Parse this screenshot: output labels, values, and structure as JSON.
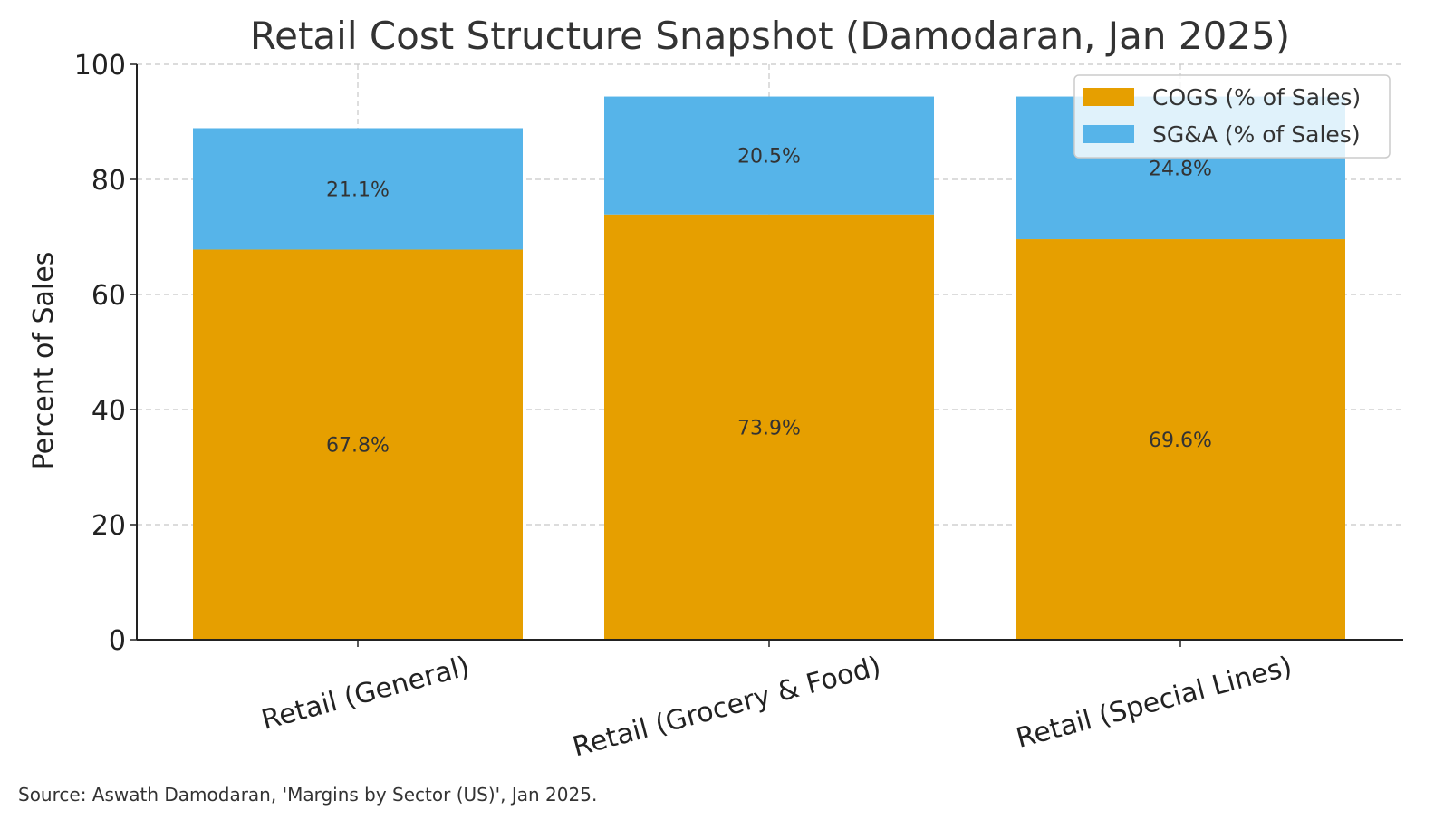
{
  "chart_data": {
    "type": "bar",
    "stacked": true,
    "title": "Retail Cost Structure Snapshot (Damodaran, Jan 2025)",
    "xlabel": "",
    "ylabel": "Percent of Sales",
    "ylim": [
      0,
      100
    ],
    "yticks": [
      0,
      20,
      40,
      60,
      80,
      100
    ],
    "grid": true,
    "legend_position": "top-right",
    "categories": [
      "Retail (General)",
      "Retail (Grocery & Food)",
      "Retail (Special Lines)"
    ],
    "series": [
      {
        "name": "COGS (% of Sales)",
        "color": "#E69F00",
        "values": [
          67.8,
          73.9,
          69.6
        ],
        "labels": [
          "67.8%",
          "73.9%",
          "69.6%"
        ]
      },
      {
        "name": "SG&A (% of Sales)",
        "color": "#56B4E9",
        "values": [
          21.1,
          20.5,
          24.8
        ],
        "labels": [
          "21.1%",
          "20.5%",
          "24.8%"
        ]
      }
    ],
    "source": "Source: Aswath Damodaran, 'Margins by Sector (US)', Jan 2025."
  }
}
